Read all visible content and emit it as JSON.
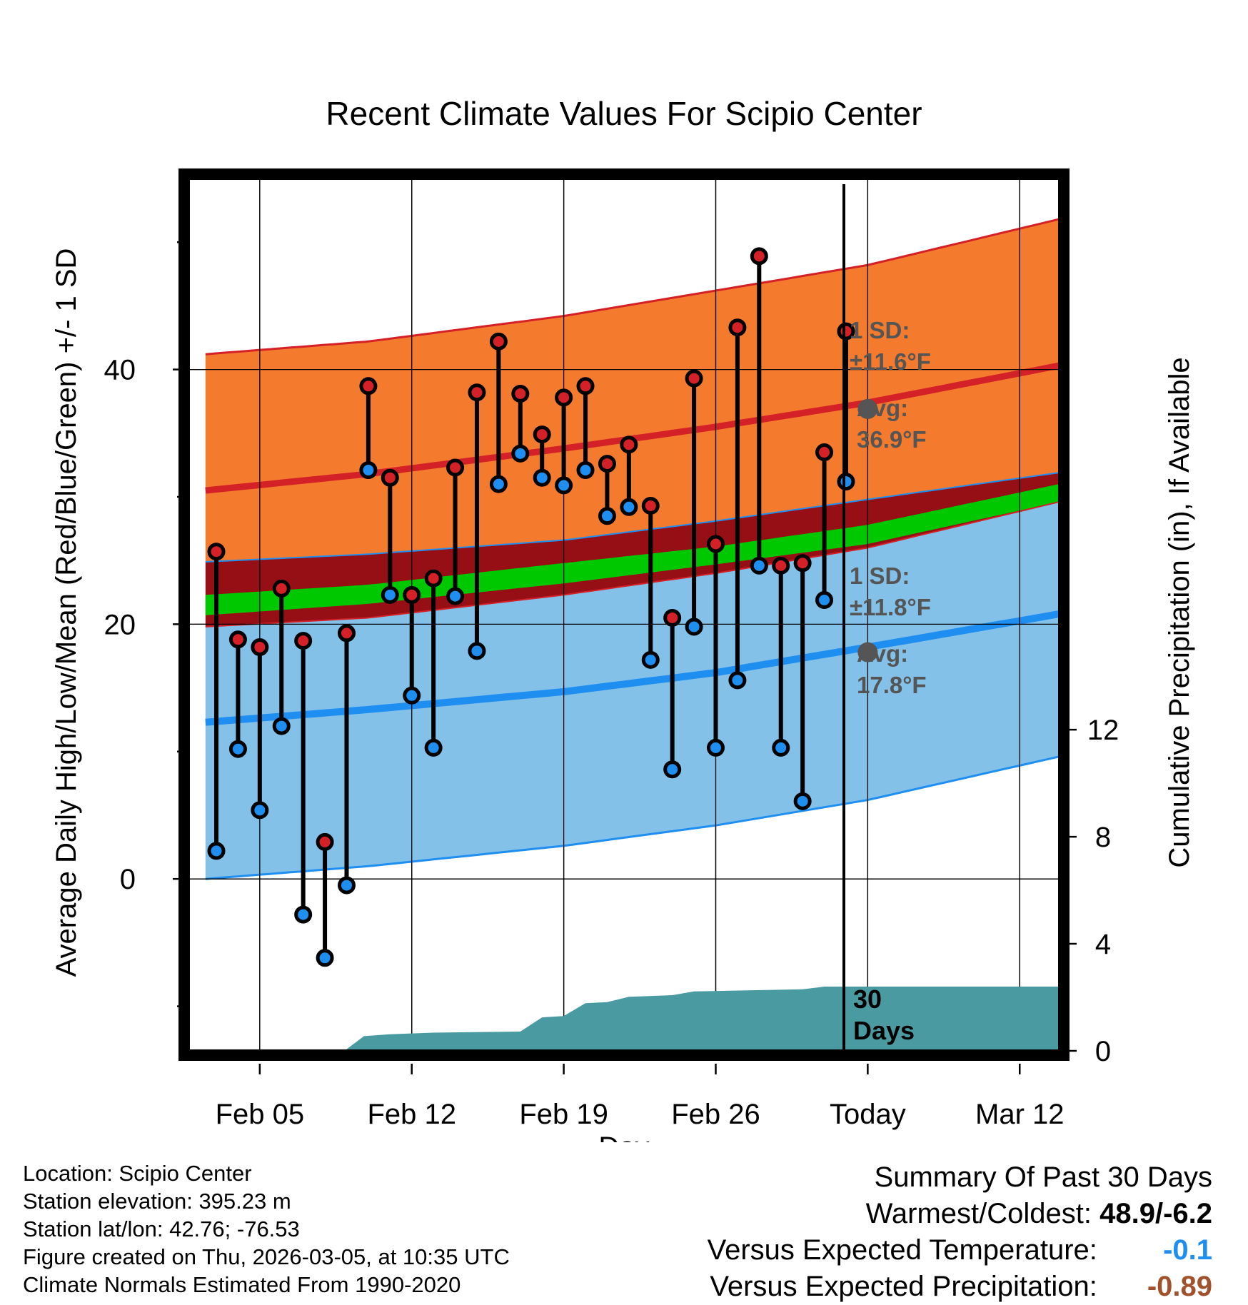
{
  "chart_data": {
    "type": "line",
    "title": "Recent Climate Values For Scipio Center",
    "xlabel": "Day",
    "ylabel_left": "Average Daily High/Low/Mean (Red/Blue/Green) +/- 1 SD",
    "ylabel_right": "Cumulative Precipitation (in), If Available",
    "x_ticks": [
      {
        "day": 5,
        "label": "Feb 05"
      },
      {
        "day": 12,
        "label": "Feb 12"
      },
      {
        "day": 19,
        "label": "Feb 19"
      },
      {
        "day": 26,
        "label": "Feb 26"
      },
      {
        "day": 33,
        "label": "Today"
      },
      {
        "day": 40,
        "label": "Mar 12"
      }
    ],
    "xlim": [
      1.75,
      41.8
    ],
    "ylim_left": [
      -13.5,
      55
    ],
    "yticks_left": [
      0,
      20,
      40
    ],
    "yminor_left": [
      -10,
      10,
      30,
      50
    ],
    "ylim_right": [
      0,
      32.6
    ],
    "yticks_right": [
      0,
      4,
      8,
      12
    ],
    "today_day": 33,
    "normals": {
      "high_mean": [
        [
          2.5,
          30.5
        ],
        [
          10,
          31.8
        ],
        [
          19,
          33.8
        ],
        [
          26,
          35.5
        ],
        [
          33,
          37.4
        ],
        [
          41.8,
          40.3
        ]
      ],
      "high_upper": [
        [
          2.5,
          41.2
        ],
        [
          10,
          42.2
        ],
        [
          19,
          44.2
        ],
        [
          26,
          46.2
        ],
        [
          33,
          48.2
        ],
        [
          41.8,
          51.8
        ]
      ],
      "high_lower": [
        [
          2.5,
          24.9
        ],
        [
          10,
          25.5
        ],
        [
          19,
          26.6
        ],
        [
          26,
          28.1
        ],
        [
          33,
          29.8
        ],
        [
          41.8,
          31.9
        ]
      ],
      "mean_upper": [
        [
          2.5,
          22.3
        ],
        [
          10,
          23.1
        ],
        [
          19,
          24.8
        ],
        [
          26,
          26.1
        ],
        [
          33,
          27.8
        ],
        [
          41.8,
          31.0
        ]
      ],
      "mean_lower": [
        [
          2.5,
          20.7
        ],
        [
          10,
          21.6
        ],
        [
          19,
          23.2
        ],
        [
          26,
          24.7
        ],
        [
          33,
          26.3
        ],
        [
          41.8,
          29.6
        ]
      ],
      "low_mean": [
        [
          2.5,
          12.3
        ],
        [
          10,
          13.3
        ],
        [
          19,
          14.7
        ],
        [
          26,
          16.2
        ],
        [
          33,
          18.2
        ],
        [
          41.8,
          20.8
        ]
      ],
      "low_upper": [
        [
          2.5,
          19.8
        ],
        [
          10,
          20.5
        ],
        [
          19,
          22.3
        ],
        [
          26,
          24.0
        ],
        [
          33,
          26.0
        ],
        [
          41.8,
          29.6
        ]
      ],
      "low_lower": [
        [
          2.5,
          0.0
        ],
        [
          10,
          1.0
        ],
        [
          19,
          2.6
        ],
        [
          26,
          4.2
        ],
        [
          33,
          6.2
        ],
        [
          41.8,
          9.6
        ]
      ]
    },
    "observations": [
      {
        "day": 3,
        "high": 25.7,
        "low": 2.2
      },
      {
        "day": 4,
        "high": 18.8,
        "low": 10.2
      },
      {
        "day": 5,
        "high": 18.2,
        "low": 5.4
      },
      {
        "day": 6,
        "high": 22.8,
        "low": 12.0
      },
      {
        "day": 7,
        "high": 18.7,
        "low": -2.8
      },
      {
        "day": 8,
        "high": 2.9,
        "low": -6.2
      },
      {
        "day": 9,
        "high": 19.3,
        "low": -0.5
      },
      {
        "day": 10,
        "high": 38.7,
        "low": 32.1
      },
      {
        "day": 11,
        "high": 31.5,
        "low": 22.3
      },
      {
        "day": 12,
        "high": 22.3,
        "low": 14.4
      },
      {
        "day": 13,
        "high": 23.6,
        "low": 10.3
      },
      {
        "day": 14,
        "high": 32.3,
        "low": 22.2
      },
      {
        "day": 15,
        "high": 38.2,
        "low": 17.9
      },
      {
        "day": 16,
        "high": 42.2,
        "low": 31.0
      },
      {
        "day": 17,
        "high": 38.1,
        "low": 33.4
      },
      {
        "day": 18,
        "high": 34.9,
        "low": 31.5
      },
      {
        "day": 19,
        "high": 37.8,
        "low": 30.9
      },
      {
        "day": 20,
        "high": 38.7,
        "low": 32.1
      },
      {
        "day": 21,
        "high": 32.6,
        "low": 28.5
      },
      {
        "day": 22,
        "high": 34.1,
        "low": 29.2
      },
      {
        "day": 23,
        "high": 29.3,
        "low": 17.2
      },
      {
        "day": 24,
        "high": 20.5,
        "low": 8.6
      },
      {
        "day": 25,
        "high": 39.3,
        "low": 19.8
      },
      {
        "day": 26,
        "high": 26.3,
        "low": 10.3
      },
      {
        "day": 27,
        "high": 43.3,
        "low": 15.6
      },
      {
        "day": 28,
        "high": 48.9,
        "low": 24.6
      },
      {
        "day": 29,
        "high": 24.6,
        "low": 10.3
      },
      {
        "day": 30,
        "high": 24.8,
        "low": 6.1
      },
      {
        "day": 31,
        "high": 33.5,
        "low": 21.9
      },
      {
        "day": 32,
        "high": 43.0,
        "low": 31.2
      }
    ],
    "precip_cumulative": [
      [
        2.5,
        0.0
      ],
      [
        8.9,
        0.0
      ],
      [
        9.8,
        0.55
      ],
      [
        11,
        0.62
      ],
      [
        13,
        0.68
      ],
      [
        17,
        0.72
      ],
      [
        18,
        1.25
      ],
      [
        19,
        1.3
      ],
      [
        20,
        1.78
      ],
      [
        21,
        1.82
      ],
      [
        22,
        2.02
      ],
      [
        24,
        2.08
      ],
      [
        25,
        2.22
      ],
      [
        30,
        2.3
      ],
      [
        31,
        2.4
      ],
      [
        41.8,
        2.4
      ]
    ],
    "annotations": {
      "high_sd_label": "1 SD:",
      "high_sd_value": "±11.6°F",
      "high_avg_label": "Avg:",
      "high_avg_value": "36.9°F",
      "high_avg_marker": 36.9,
      "low_sd_label": "1 SD:",
      "low_sd_value": "±11.8°F",
      "low_avg_label": "Avg:",
      "low_avg_value": "17.8°F",
      "low_avg_marker": 17.8,
      "precip_label_1": "30",
      "precip_label_2": "Days"
    }
  },
  "colors": {
    "high_band": "#f47a2d",
    "high_line": "#d42027",
    "low_band": "#83c1e8",
    "low_line": "#1f8ef1",
    "mean_band": "#960f14",
    "mean_line": "#00c800",
    "precip": "#4a9aa2",
    "high_dot": "#d42027",
    "low_dot": "#1f8ef1",
    "marker": "#555555",
    "annotation_text": "#555555",
    "temp_departure": "#1f8ef1",
    "precip_departure": "#a0522d"
  },
  "footer": {
    "location": "Location: Scipio Center",
    "elevation": "Station elevation: 395.23 m",
    "latlon": "Station lat/lon: 42.76; -76.53",
    "created": "Figure created on Thu, 2026-03-05, at 10:35 UTC",
    "normals": "Climate Normals Estimated From 1990-2020"
  },
  "summary": {
    "heading": "Summary Of Past 30 Days",
    "warm_cold_label": "Warmest/Coldest:",
    "warm_cold_value": "48.9/-6.2",
    "temp_label": "Versus Expected Temperature:",
    "temp_value": "-0.1",
    "precip_label": "Versus Expected Precipitation:",
    "precip_value": "-0.89"
  }
}
